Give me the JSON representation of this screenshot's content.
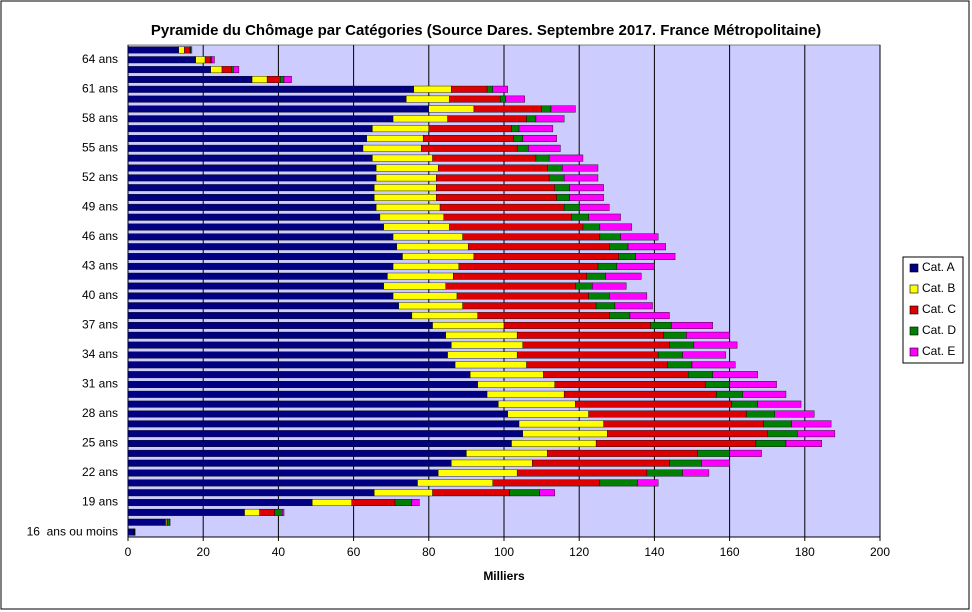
{
  "chart_data": {
    "type": "hbar_stacked",
    "title": "Pyramide du Chômage par Catégories (Source Dares. Septembre 2017. France Métropolitaine)",
    "x_label": "Milliers",
    "categories": [
      "16  ans ou moins",
      null,
      null,
      "19 ans",
      null,
      null,
      "22 ans",
      null,
      null,
      "25 ans",
      null,
      null,
      "28 ans",
      null,
      null,
      "31 ans",
      null,
      null,
      "34 ans",
      null,
      null,
      "37 ans",
      null,
      null,
      "40 ans",
      null,
      null,
      "43 ans",
      null,
      null,
      "46 ans",
      null,
      null,
      "49 ans",
      null,
      null,
      "52 ans",
      null,
      null,
      "55 ans",
      null,
      null,
      "58 ans",
      null,
      null,
      "61 ans",
      null,
      null,
      "64 ans",
      null
    ],
    "series": [
      {
        "name": "Cat. A",
        "color": "#000080",
        "values": [
          1.5,
          10,
          31,
          49,
          65.5,
          77,
          82.5,
          86,
          90,
          102,
          105,
          104,
          101,
          98.5,
          95.5,
          93,
          91,
          87,
          85,
          86,
          84.5,
          81,
          75.5,
          72,
          70.5,
          68,
          69,
          70.5,
          73,
          71.5,
          70.5,
          68,
          67,
          66,
          65.5,
          65.5,
          66,
          66,
          65,
          62.5,
          63.5,
          65,
          70.5,
          80,
          74,
          76,
          33,
          22,
          18,
          13.5
        ]
      },
      {
        "name": "Cat. B",
        "color": "#ffff00",
        "values": [
          0.1,
          0.3,
          4,
          10.5,
          15.5,
          20,
          21,
          21.5,
          21.5,
          22.5,
          22.5,
          22.5,
          21.5,
          20.5,
          20.5,
          20.5,
          19.5,
          19,
          18.5,
          19,
          19,
          19,
          17.5,
          17,
          17,
          16.5,
          17.5,
          17.5,
          19,
          19,
          18.5,
          17.5,
          17,
          17,
          16.5,
          16.5,
          16,
          16.5,
          16,
          15.5,
          15,
          15,
          14.5,
          12,
          11.5,
          10,
          4,
          3,
          2.5,
          1.5
        ]
      },
      {
        "name": "Cat. C",
        "color": "#dd0000",
        "values": [
          0.1,
          0.3,
          4,
          11.5,
          20.5,
          28.5,
          34.5,
          36.5,
          40,
          42.5,
          42.5,
          42.5,
          42,
          41.5,
          40.5,
          40,
          38.5,
          37.5,
          37.5,
          39,
          39,
          39,
          35,
          35.5,
          35,
          34.5,
          35.5,
          37,
          38.5,
          37.5,
          36.5,
          35.5,
          34,
          33,
          32,
          31.5,
          30,
          29,
          27.5,
          25.5,
          24,
          22,
          21,
          18,
          13.5,
          9.5,
          3.5,
          2.5,
          1.5,
          1.5
        ]
      },
      {
        "name": "Cat. D",
        "color": "#008000",
        "values": [
          0.1,
          0.4,
          2,
          4.5,
          8,
          10,
          9.5,
          8.5,
          8.5,
          8,
          8,
          7.5,
          7.5,
          7,
          7,
          6.5,
          6.5,
          6.5,
          6.5,
          6.5,
          6,
          5.5,
          5.5,
          5,
          5.5,
          4.5,
          5,
          5,
          4.5,
          5,
          5.5,
          4.5,
          4.5,
          4,
          3.5,
          4,
          4,
          4,
          3.5,
          3,
          2.5,
          2,
          2.5,
          2.5,
          1.5,
          1.5,
          1,
          0.5,
          0.3,
          0.2
        ]
      },
      {
        "name": "Cat. E",
        "color": "#ff00ff",
        "values": [
          0.1,
          0.2,
          0.5,
          2,
          4,
          5.5,
          7,
          7.5,
          8.5,
          9.5,
          10,
          10.5,
          10.5,
          11.5,
          11.5,
          12.5,
          12,
          11.5,
          11.5,
          11.5,
          11.5,
          11,
          10.5,
          10,
          10,
          9,
          9.5,
          10,
          10.5,
          10,
          10,
          8.5,
          8.5,
          8,
          9,
          9,
          9,
          9.5,
          9,
          8.5,
          9,
          9,
          7.5,
          6.5,
          5,
          4,
          2,
          1.5,
          0.7,
          0.3
        ]
      }
    ],
    "xlim": [
      0,
      200
    ],
    "xticks": [
      0,
      20,
      40,
      60,
      80,
      100,
      120,
      140,
      160,
      180,
      200
    ],
    "grid": true,
    "legend": "right"
  }
}
